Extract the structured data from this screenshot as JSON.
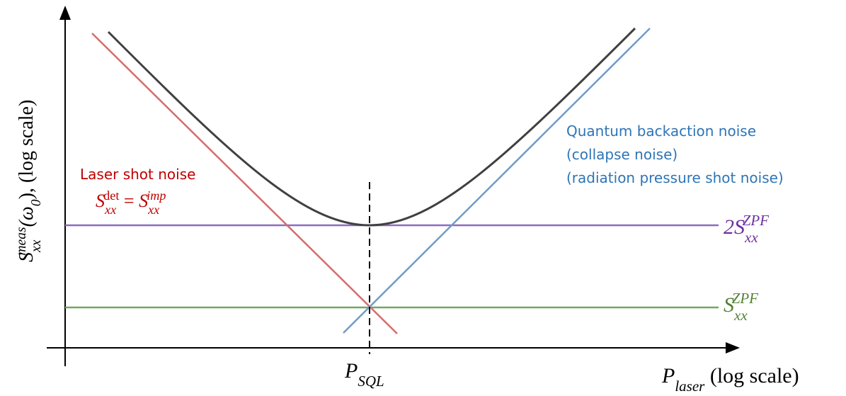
{
  "y_axis_label": {
    "symbol": "S",
    "subscript": "xx",
    "superscript": "meas",
    "argument": "(ω",
    "argument_subscript": "0",
    "suffix": "), (log scale)"
  },
  "x_axis_label": {
    "symbol": "P",
    "subscript": "laser",
    "suffix": " (log scale)"
  },
  "sql_label": {
    "symbol": "P",
    "subscript": "SQL"
  },
  "shot_noise": {
    "title": "Laser shot noise",
    "lhs_symbol": "S",
    "lhs_subscript": "xx",
    "lhs_superscript": "det",
    "equals": " = ",
    "rhs_symbol": "S",
    "rhs_subscript": "xx",
    "rhs_superscript": "imp"
  },
  "backaction": {
    "lines": [
      "Quantum backaction noise",
      "(collapse noise)",
      "(radiation pressure shot noise)"
    ]
  },
  "zpf_double": {
    "prefix": "2S",
    "subscript": "xx",
    "superscript": "ZPF"
  },
  "zpf": {
    "symbol": "S",
    "subscript": "xx",
    "superscript": "ZPF"
  }
}
